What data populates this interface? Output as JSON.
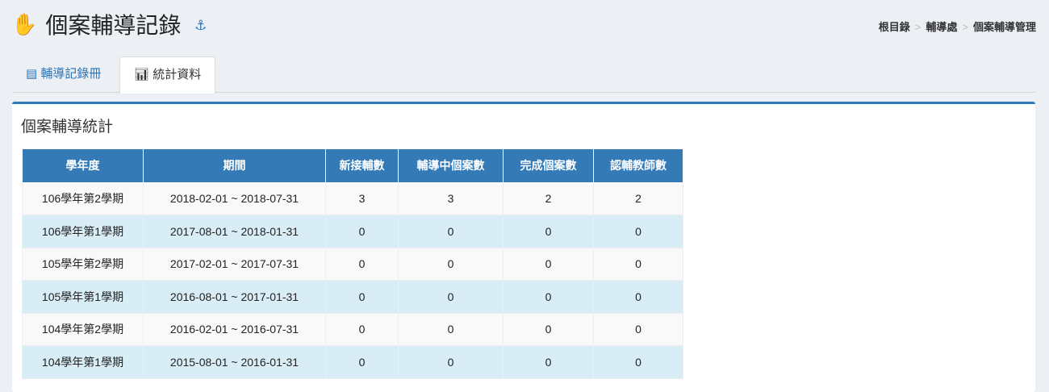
{
  "header": {
    "title": "個案輔導記錄",
    "hand_icon": "hand-icon",
    "anchor_icon": "anchor-icon"
  },
  "breadcrumb": [
    "根目錄",
    "輔導處",
    "個案輔導管理"
  ],
  "breadcrumb_sep": ">",
  "tabs": [
    {
      "label": "輔導記錄冊",
      "icon": "list-icon"
    },
    {
      "label": "統計資料",
      "icon": "bar-chart-icon",
      "active": true
    }
  ],
  "panel": {
    "title": "個案輔導統計"
  },
  "table": {
    "headers": [
      "學年度",
      "期間",
      "新接輔數",
      "輔導中個案數",
      "完成個案數",
      "認輔教師數"
    ],
    "rows": [
      [
        "106學年第2學期",
        "2018-02-01 ~ 2018-07-31",
        "3",
        "3",
        "2",
        "2"
      ],
      [
        "106學年第1學期",
        "2017-08-01 ~ 2018-01-31",
        "0",
        "0",
        "0",
        "0"
      ],
      [
        "105學年第2學期",
        "2017-02-01 ~ 2017-07-31",
        "0",
        "0",
        "0",
        "0"
      ],
      [
        "105學年第1學期",
        "2016-08-01 ~ 2017-01-31",
        "0",
        "0",
        "0",
        "0"
      ],
      [
        "104學年第2學期",
        "2016-02-01 ~ 2016-07-31",
        "0",
        "0",
        "0",
        "0"
      ],
      [
        "104學年第1學期",
        "2015-08-01 ~ 2016-01-31",
        "0",
        "0",
        "0",
        "0"
      ]
    ]
  },
  "colors": {
    "accent": "#337ab7",
    "stripe": "#d9edf7",
    "background": "#ecf0f5"
  }
}
